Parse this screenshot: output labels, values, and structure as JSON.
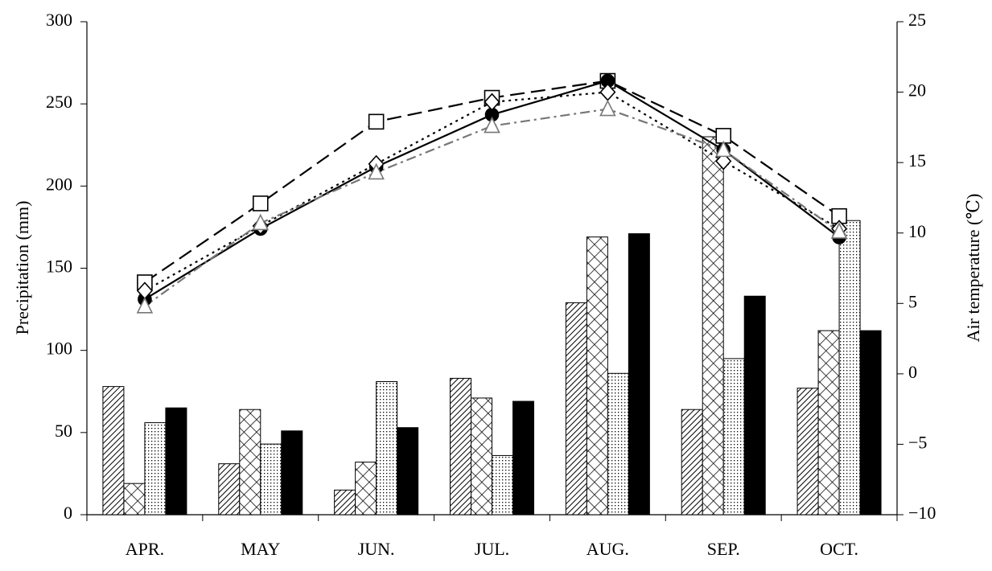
{
  "chart_data": {
    "type": "bar",
    "ylabel": "Precipitation (mm)",
    "y2label": "Air temperature (℃)",
    "categories": [
      "APR.",
      "MAY",
      "JUN.",
      "JUL.",
      "AUG.",
      "SEP.",
      "OCT."
    ],
    "ylim": [
      0,
      300
    ],
    "yticks": [
      0,
      50,
      100,
      150,
      200,
      250,
      300
    ],
    "y2lim": [
      -10,
      25
    ],
    "y2ticks": [
      {
        "value": -10,
        "label": "−10"
      },
      {
        "value": -5,
        "label": "−5"
      },
      0,
      5,
      10,
      15,
      20,
      25
    ],
    "series": [
      {
        "type": "bar",
        "pattern": "diagonal",
        "color": "#000000",
        "values": [
          78,
          31,
          15,
          83,
          129,
          64,
          77
        ]
      },
      {
        "type": "bar",
        "pattern": "crosshatch",
        "color": "#000000",
        "values": [
          19,
          64,
          32,
          71,
          169,
          230,
          112
        ]
      },
      {
        "type": "bar",
        "pattern": "dots",
        "color": "#000000",
        "values": [
          56,
          43,
          81,
          36,
          86,
          95,
          179
        ]
      },
      {
        "type": "bar",
        "pattern": "solid",
        "color": "#000000",
        "values": [
          65,
          51,
          53,
          69,
          171,
          133,
          112
        ]
      },
      {
        "type": "line",
        "axis": "y2",
        "marker": "square",
        "dash": "18,8",
        "color": "#000000",
        "values": [
          6.5,
          12.1,
          17.9,
          19.6,
          20.8,
          16.9,
          11.2
        ]
      },
      {
        "type": "line",
        "axis": "y2",
        "marker": "circle",
        "dash": "none",
        "color": "#000000",
        "values": [
          5.3,
          10.3,
          14.7,
          18.4,
          20.8,
          15.9,
          9.7
        ]
      },
      {
        "type": "line",
        "axis": "y2",
        "marker": "diamond",
        "dash": "3,5",
        "color": "#000000",
        "values": [
          5.9,
          10.5,
          14.9,
          19.3,
          20.0,
          15.1,
          10.3
        ]
      },
      {
        "type": "line",
        "axis": "y2",
        "marker": "triangle",
        "dash": "12,5,3,5",
        "color": "#777777",
        "values": [
          4.8,
          10.7,
          14.3,
          17.6,
          18.8,
          15.9,
          10.1
        ]
      }
    ]
  }
}
